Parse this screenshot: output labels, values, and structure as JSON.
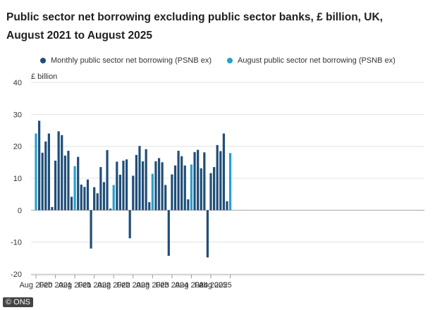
{
  "chart_data": {
    "type": "bar",
    "title_line1": "Public sector net borrowing excluding public sector banks, £ billion, UK,",
    "title_line2": "August 2021 to August 2025",
    "ylabel": "£ billion",
    "ylim": [
      -20,
      40
    ],
    "yticks": [
      -20,
      -10,
      0,
      10,
      20,
      30,
      40
    ],
    "x_tick_labels": [
      "Aug 2020",
      "Feb 2021",
      "Aug 2021",
      "Feb 2022",
      "Aug 2022",
      "Feb 2023",
      "Aug 2023",
      "Feb 2024",
      "Aug 2024",
      "Feb 2025",
      "Aug 2025"
    ],
    "series": [
      {
        "name": "Monthly public sector net borrowing (PSNB ex)",
        "color": "#1f4e79"
      },
      {
        "name": "August public sector net borrowing (PSNB ex)",
        "color": "#27a0cc"
      }
    ],
    "months": [
      "Aug 2020",
      "Sep 2020",
      "Oct 2020",
      "Nov 2020",
      "Dec 2020",
      "Jan 2021",
      "Feb 2021",
      "Mar 2021",
      "Apr 2021",
      "May 2021",
      "Jun 2021",
      "Jul 2021",
      "Aug 2021",
      "Sep 2021",
      "Oct 2021",
      "Nov 2021",
      "Dec 2021",
      "Jan 2022",
      "Feb 2022",
      "Mar 2022",
      "Apr 2022",
      "May 2022",
      "Jun 2022",
      "Jul 2022",
      "Aug 2022",
      "Sep 2022",
      "Oct 2022",
      "Nov 2022",
      "Dec 2022",
      "Jan 2023",
      "Feb 2023",
      "Mar 2023",
      "Apr 2023",
      "May 2023",
      "Jun 2023",
      "Jul 2023",
      "Aug 2023",
      "Sep 2023",
      "Oct 2023",
      "Nov 2023",
      "Dec 2023",
      "Jan 2024",
      "Feb 2024",
      "Mar 2024",
      "Apr 2024",
      "May 2024",
      "Jun 2024",
      "Jul 2024",
      "Aug 2024",
      "Sep 2024",
      "Oct 2024",
      "Nov 2024",
      "Dec 2024",
      "Jan 2025",
      "Feb 2025",
      "Mar 2025",
      "Apr 2025",
      "May 2025",
      "Jun 2025",
      "Jul 2025",
      "Aug 2025"
    ],
    "values": [
      24,
      28,
      18,
      21.5,
      24,
      1,
      15.5,
      24.7,
      23.5,
      17.1,
      18.6,
      4.2,
      13.8,
      16.7,
      8,
      7.3,
      9.6,
      -12,
      7.2,
      5.3,
      13.5,
      8.8,
      18.8,
      0.5,
      7.9,
      15.2,
      11.1,
      15.5,
      15.9,
      -8.8,
      10.8,
      17.3,
      20.1,
      15.3,
      19.1,
      2.5,
      11.4,
      15.3,
      16.3,
      15,
      7.9,
      -14.3,
      11.2,
      14,
      18.6,
      16.9,
      14,
      3.4,
      14.3,
      18.2,
      18.9,
      13.1,
      18.1,
      -14.8,
      11.6,
      13.5,
      20.4,
      18.5,
      24,
      2.8,
      17.9
    ],
    "is_august": [
      true,
      false,
      false,
      false,
      false,
      false,
      false,
      false,
      false,
      false,
      false,
      false,
      true,
      false,
      false,
      false,
      false,
      false,
      false,
      false,
      false,
      false,
      false,
      false,
      true,
      false,
      false,
      false,
      false,
      false,
      false,
      false,
      false,
      false,
      false,
      false,
      true,
      false,
      false,
      false,
      false,
      false,
      false,
      false,
      false,
      false,
      false,
      false,
      true,
      false,
      false,
      false,
      false,
      false,
      false,
      false,
      false,
      false,
      false,
      false,
      true
    ],
    "grid": true,
    "legend_position": "top"
  },
  "footer": {
    "source": "© ONS"
  }
}
